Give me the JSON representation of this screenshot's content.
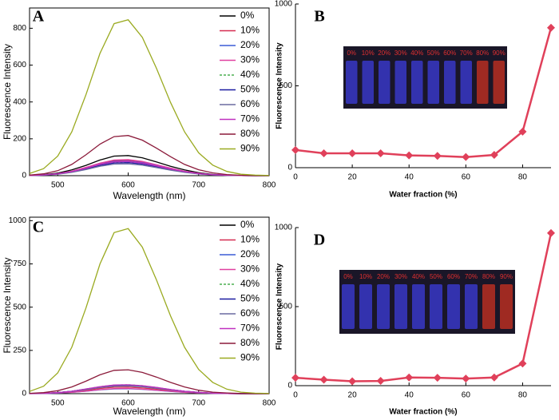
{
  "chart_data": [
    {
      "type": "line",
      "title": "A",
      "xlabel": "Wavelength (nm)",
      "ylabel": "Fluorescence Intensity",
      "x": [
        460,
        480,
        500,
        520,
        540,
        560,
        580,
        600,
        620,
        640,
        660,
        680,
        700,
        720,
        740,
        760,
        780,
        800
      ],
      "xlim": [
        460,
        800
      ],
      "xticks": [
        500,
        600,
        700,
        800
      ],
      "ylim": [
        0,
        910
      ],
      "yticks": [
        0,
        200,
        400,
        600,
        800
      ],
      "legend": "upper right",
      "series": [
        {
          "name": "0%",
          "color": "#000000",
          "values": [
            1,
            5,
            14,
            31,
            56,
            85,
            106,
            109,
            97,
            75,
            51,
            31,
            16,
            7,
            3,
            1,
            0,
            0
          ]
        },
        {
          "name": "10%",
          "color": "#d62b50",
          "values": [
            1,
            4,
            11,
            24,
            44,
            66,
            82,
            84,
            75,
            58,
            40,
            24,
            12,
            6,
            2,
            1,
            0,
            0
          ]
        },
        {
          "name": "20%",
          "color": "#3b5bd6",
          "values": [
            1,
            4,
            10,
            22,
            41,
            62,
            77,
            79,
            70,
            55,
            37,
            22,
            12,
            5,
            2,
            1,
            0,
            0
          ]
        },
        {
          "name": "30%",
          "color": "#e040a0",
          "values": [
            1,
            4,
            11,
            24,
            45,
            68,
            85,
            87,
            77,
            60,
            41,
            24,
            13,
            6,
            2,
            1,
            0,
            0
          ]
        },
        {
          "name": "40%",
          "color": "#4caf50",
          "dashed": true,
          "values": [
            1,
            3,
            9,
            21,
            38,
            58,
            72,
            74,
            66,
            51,
            35,
            21,
            11,
            5,
            2,
            1,
            0,
            0
          ]
        },
        {
          "name": "50%",
          "color": "#1a1aa0",
          "values": [
            1,
            3,
            9,
            20,
            37,
            56,
            69,
            71,
            63,
            49,
            34,
            20,
            10,
            5,
            2,
            1,
            0,
            0
          ]
        },
        {
          "name": "60%",
          "color": "#6a6aa0",
          "values": [
            1,
            3,
            8,
            18,
            33,
            51,
            63,
            64,
            57,
            44,
            30,
            18,
            9,
            4,
            2,
            1,
            0,
            0
          ]
        },
        {
          "name": "70%",
          "color": "#c030c0",
          "values": [
            1,
            4,
            10,
            22,
            40,
            61,
            75,
            77,
            68,
            53,
            36,
            22,
            11,
            5,
            2,
            1,
            0,
            0
          ]
        },
        {
          "name": "80%",
          "color": "#8b1a3a",
          "values": [
            3,
            10,
            27,
            61,
            113,
            171,
            212,
            218,
            193,
            150,
            103,
            61,
            32,
            15,
            6,
            2,
            1,
            0
          ]
        },
        {
          "name": "90%",
          "color": "#9aaa20",
          "values": [
            12,
            38,
            106,
            238,
            439,
            664,
            825,
            846,
            751,
            584,
            398,
            238,
            124,
            57,
            23,
            8,
            3,
            1
          ]
        }
      ]
    },
    {
      "type": "line",
      "title": "B",
      "xlabel": "Water fraction (%)",
      "ylabel": "Fluorescence Intensity",
      "markers": "diamond",
      "x": [
        0,
        10,
        20,
        30,
        40,
        50,
        60,
        70,
        80,
        90
      ],
      "xlim": [
        0,
        90
      ],
      "xticks": [
        0,
        20,
        40,
        60,
        80
      ],
      "ylim": [
        0,
        1000
      ],
      "yticks": [
        0,
        500,
        1000
      ],
      "inset_labels": [
        "0%",
        "10%",
        "20%",
        "30%",
        "40%",
        "50%",
        "60%",
        "70%",
        "80%",
        "90%"
      ],
      "series": [
        {
          "color": "#e0405a",
          "values": [
            108,
            88,
            88,
            88,
            75,
            72,
            65,
            78,
            220,
            855
          ]
        }
      ]
    },
    {
      "type": "line",
      "title": "C",
      "xlabel": "Wavelength (nm)",
      "ylabel": "Fluorescence Intensity",
      "x": [
        460,
        480,
        500,
        520,
        540,
        560,
        580,
        600,
        620,
        640,
        660,
        680,
        700,
        720,
        740,
        760,
        780,
        800
      ],
      "xlim": [
        460,
        800
      ],
      "xticks": [
        500,
        600,
        700,
        800
      ],
      "ylim": [
        0,
        1020
      ],
      "yticks": [
        0,
        250,
        500,
        750,
        1000
      ],
      "legend": "upper right",
      "series": [
        {
          "name": "0%",
          "color": "#000000",
          "values": [
            1,
            2,
            6,
            14,
            26,
            39,
            48,
            49,
            44,
            34,
            23,
            14,
            7,
            3,
            1,
            0,
            0,
            0
          ]
        },
        {
          "name": "10%",
          "color": "#d62b50",
          "values": [
            1,
            2,
            5,
            11,
            19,
            30,
            37,
            38,
            33,
            26,
            18,
            11,
            6,
            3,
            1,
            0,
            0,
            0
          ]
        },
        {
          "name": "20%",
          "color": "#3b5bd6",
          "values": [
            0,
            1,
            3,
            8,
            14,
            22,
            27,
            28,
            25,
            19,
            13,
            8,
            4,
            2,
            1,
            0,
            0,
            0
          ]
        },
        {
          "name": "30%",
          "color": "#e040a0",
          "values": [
            0,
            1,
            4,
            8,
            15,
            23,
            29,
            30,
            26,
            20,
            14,
            8,
            4,
            2,
            1,
            0,
            0,
            0
          ]
        },
        {
          "name": "40%",
          "color": "#4caf50",
          "dashed": true,
          "values": [
            1,
            2,
            6,
            14,
            27,
            40,
            50,
            51,
            46,
            36,
            24,
            14,
            8,
            3,
            1,
            0,
            0,
            0
          ]
        },
        {
          "name": "50%",
          "color": "#1a1aa0",
          "values": [
            1,
            2,
            6,
            14,
            26,
            39,
            48,
            49,
            44,
            34,
            23,
            14,
            7,
            3,
            1,
            0,
            0,
            0
          ]
        },
        {
          "name": "60%",
          "color": "#6a6aa0",
          "values": [
            1,
            2,
            6,
            13,
            23,
            35,
            43,
            45,
            40,
            31,
            21,
            13,
            7,
            3,
            1,
            0,
            0,
            0
          ]
        },
        {
          "name": "70%",
          "color": "#c030c0",
          "values": [
            1,
            2,
            6,
            14,
            27,
            40,
            50,
            51,
            46,
            36,
            24,
            14,
            8,
            3,
            1,
            0,
            0,
            0
          ]
        },
        {
          "name": "80%",
          "color": "#8b1a3a",
          "values": [
            2,
            6,
            17,
            39,
            72,
            109,
            135,
            138,
            123,
            96,
            65,
            39,
            20,
            9,
            4,
            1,
            0,
            0
          ]
        },
        {
          "name": "90%",
          "color": "#9aaa20",
          "values": [
            13,
            43,
            120,
            268,
            495,
            750,
            931,
            954,
            847,
            659,
            450,
            268,
            140,
            65,
            26,
            9,
            3,
            1
          ]
        }
      ]
    },
    {
      "type": "line",
      "title": "D",
      "xlabel": "Water fraction (%)",
      "ylabel": "Fluorescence Intensity",
      "markers": "diamond",
      "x": [
        0,
        10,
        20,
        30,
        40,
        50,
        60,
        70,
        80,
        90
      ],
      "xlim": [
        0,
        90
      ],
      "xticks": [
        0,
        20,
        40,
        60,
        80
      ],
      "ylim": [
        0,
        1000
      ],
      "yticks": [
        0,
        500,
        1000
      ],
      "inset_labels": [
        "0%",
        "10%",
        "20%",
        "30%",
        "40%",
        "50%",
        "60%",
        "70%",
        "80%",
        "90%"
      ],
      "series": [
        {
          "color": "#e0405a",
          "values": [
            50,
            38,
            28,
            30,
            52,
            50,
            45,
            52,
            140,
            965
          ]
        }
      ]
    }
  ]
}
